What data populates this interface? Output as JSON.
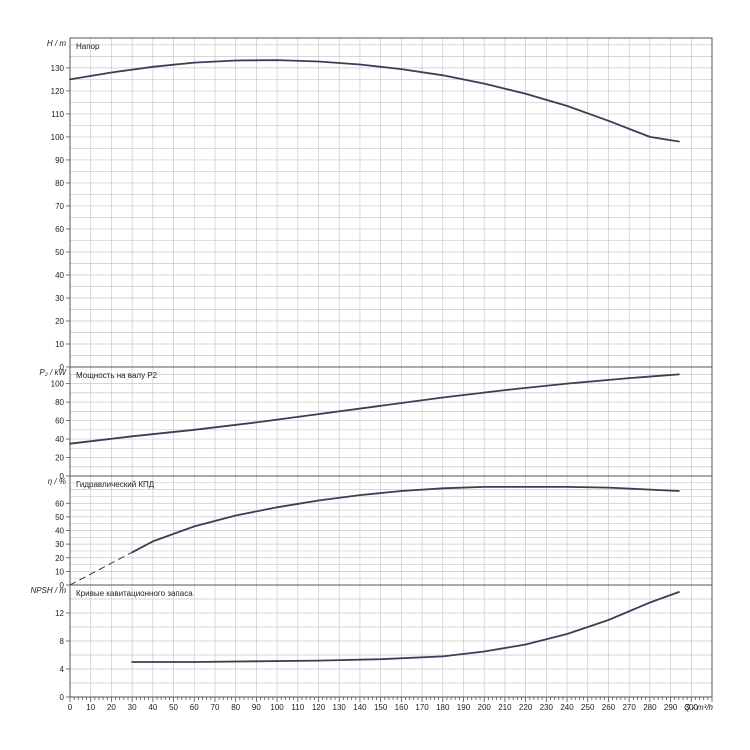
{
  "chart_data": {
    "type": "line",
    "x_axis": {
      "label": "Q / m³/h",
      "range": [
        0,
        310
      ],
      "ticks": [
        0,
        10,
        20,
        30,
        40,
        50,
        60,
        70,
        80,
        90,
        100,
        110,
        120,
        130,
        140,
        150,
        160,
        170,
        180,
        190,
        200,
        210,
        220,
        230,
        240,
        250,
        260,
        270,
        280,
        290,
        300
      ]
    },
    "grid": true,
    "colors": {
      "curve": "#3a3f55",
      "grid": "#c8c8c8",
      "frame": "#555555"
    },
    "panels": [
      {
        "id": "head",
        "title": "Напор",
        "ylabel": "H / m",
        "ylim": [
          0,
          143
        ],
        "yticks": [
          0,
          10,
          20,
          30,
          40,
          50,
          60,
          70,
          80,
          90,
          100,
          110,
          120,
          130
        ],
        "series": [
          {
            "x": [
              0,
              20,
              40,
              60,
              80,
              100,
              120,
              140,
              160,
              180,
              200,
              220,
              240,
              260,
              280,
              294
            ],
            "y": [
              125,
              128,
              130.5,
              132.3,
              133.2,
              133.4,
              132.8,
              131.5,
              129.5,
              126.8,
              123.2,
              118.8,
              113.5,
              107,
              100,
              98
            ]
          }
        ]
      },
      {
        "id": "power",
        "title": "Мощность на валу P2",
        "ylabel": "P₂ / kW",
        "ylim": [
          0,
          118
        ],
        "yticks": [
          0,
          20,
          40,
          60,
          80,
          100
        ],
        "series": [
          {
            "x": [
              0,
              30,
              60,
              90,
              120,
              150,
              180,
              210,
              240,
              270,
              294
            ],
            "y": [
              35,
              43,
              50,
              58,
              67,
              76,
              85,
              93,
              100,
              106,
              110
            ]
          }
        ]
      },
      {
        "id": "efficiency",
        "title": "Гидравлический КПД",
        "ylabel": "η / %",
        "ylim": [
          0,
          80
        ],
        "yticks": [
          0,
          10,
          20,
          30,
          40,
          50,
          60
        ],
        "series": [
          {
            "style": "dashed",
            "x": [
              0,
              10,
              20,
              30
            ],
            "y": [
              0,
              8,
              16,
              24
            ]
          },
          {
            "x": [
              30,
              40,
              60,
              80,
              100,
              120,
              140,
              160,
              180,
              200,
              220,
              240,
              260,
              280,
              294
            ],
            "y": [
              24,
              32,
              43,
              51,
              57,
              62,
              66,
              69,
              71,
              72,
              72,
              72,
              71.5,
              70,
              69
            ]
          }
        ]
      },
      {
        "id": "npsh",
        "title": "Кривые кавитационного запаса",
        "ylabel": "NPSH / m",
        "ylim": [
          0,
          16
        ],
        "yticks": [
          0,
          4,
          8,
          12
        ],
        "series": [
          {
            "x": [
              30,
              60,
              90,
              120,
              150,
              180,
              200,
              220,
              240,
              260,
              280,
              294
            ],
            "y": [
              5,
              5,
              5.1,
              5.2,
              5.4,
              5.8,
              6.5,
              7.5,
              9,
              11,
              13.5,
              15
            ]
          }
        ]
      }
    ]
  }
}
